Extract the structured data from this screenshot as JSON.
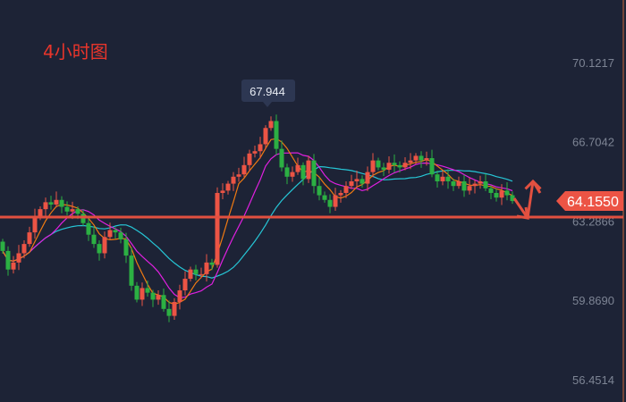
{
  "title": "4小时图",
  "colors": {
    "up": "#ec5445",
    "down": "#2cb043",
    "background": "#1d2336",
    "level_line": "#e25040",
    "ma_fast": "#f07a12",
    "ma_mid": "#e020e0",
    "ma_slow": "#26c6d6",
    "title": "#e8352b"
  },
  "chart_data": {
    "type": "candlestick",
    "title": "4小时图",
    "ylim": [
      56.0,
      71.6
    ],
    "y_ticks": [
      "70.1217",
      "66.7042",
      "63.2866",
      "59.8690",
      "56.4514"
    ],
    "y_tick_values": [
      70.1217,
      66.7042,
      63.2866,
      59.869,
      56.4514
    ],
    "close": [
      62.0,
      61.2,
      61.5,
      61.9,
      62.3,
      62.8,
      63.5,
      63.8,
      64.1,
      64.0,
      64.2,
      63.9,
      63.7,
      63.8,
      63.6,
      63.2,
      62.7,
      62.3,
      61.9,
      62.6,
      62.9,
      62.8,
      62.5,
      61.8,
      60.5,
      59.9,
      60.4,
      60.2,
      59.9,
      60.1,
      59.5,
      59.2,
      59.8,
      60.3,
      60.8,
      61.2,
      61.0,
      61.0,
      61.5,
      61.4,
      64.5,
      64.6,
      64.9,
      65.2,
      65.3,
      65.7,
      66.2,
      66.3,
      66.6,
      67.3,
      67.6,
      66.4,
      65.6,
      65.2,
      65.4,
      65.7,
      65.1,
      65.9,
      64.8,
      64.4,
      64.2,
      63.9,
      64.4,
      64.5,
      64.8,
      65.0,
      65.1,
      64.9,
      65.4,
      65.9,
      65.6,
      65.5,
      65.8,
      65.7,
      65.6,
      65.8,
      65.9,
      66.1,
      65.9,
      66.0,
      65.3,
      65.0,
      65.2,
      65.0,
      64.8,
      65.0,
      64.6,
      64.8,
      64.9,
      65.0,
      64.7,
      64.5,
      64.3,
      64.6,
      64.4,
      64.15
    ],
    "open": [
      62.4,
      62.0,
      61.2,
      61.5,
      61.9,
      62.3,
      62.8,
      63.5,
      63.8,
      64.1,
      64.0,
      64.2,
      63.9,
      63.7,
      63.8,
      63.6,
      63.2,
      62.7,
      62.3,
      61.9,
      62.6,
      62.9,
      62.8,
      62.5,
      61.8,
      60.5,
      59.9,
      60.4,
      60.2,
      59.9,
      60.1,
      59.5,
      59.2,
      59.8,
      60.3,
      60.8,
      61.2,
      61.0,
      61.0,
      61.5,
      61.4,
      64.5,
      64.6,
      64.9,
      65.2,
      65.3,
      65.7,
      66.2,
      66.3,
      66.6,
      67.3,
      67.6,
      66.4,
      65.6,
      65.2,
      65.4,
      65.7,
      65.1,
      65.9,
      64.8,
      64.4,
      64.2,
      63.9,
      64.4,
      64.5,
      64.8,
      65.0,
      65.1,
      64.9,
      65.4,
      65.9,
      65.6,
      65.5,
      65.8,
      65.7,
      65.6,
      65.8,
      65.9,
      66.1,
      65.9,
      66.0,
      65.3,
      65.0,
      65.2,
      65.0,
      64.8,
      65.0,
      64.6,
      64.8,
      64.9,
      65.0,
      64.7,
      64.5,
      64.3,
      64.6,
      64.4
    ],
    "high_marker": "67.944",
    "current_price": "64.1550",
    "level_line": 63.46
  }
}
